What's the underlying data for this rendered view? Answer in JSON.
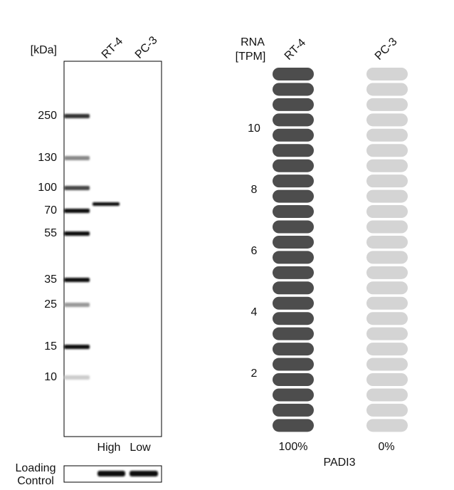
{
  "blot": {
    "unit_label": "[kDa]",
    "lanes": [
      "RT-4",
      "PC-3"
    ],
    "markers": [
      "250",
      "130",
      "100",
      "70",
      "55",
      "35",
      "25",
      "15",
      "10"
    ],
    "levels": [
      "High",
      "Low"
    ],
    "loading_control": [
      "Loading",
      "Control"
    ]
  },
  "rna": {
    "title": [
      "RNA",
      "[TPM]"
    ],
    "lanes": [
      "RT-4",
      "PC-3"
    ],
    "axis_labels": [
      "10",
      "8",
      "6",
      "4",
      "2"
    ],
    "percentages": [
      "100%",
      "0%"
    ],
    "gene": "PADI3"
  }
}
